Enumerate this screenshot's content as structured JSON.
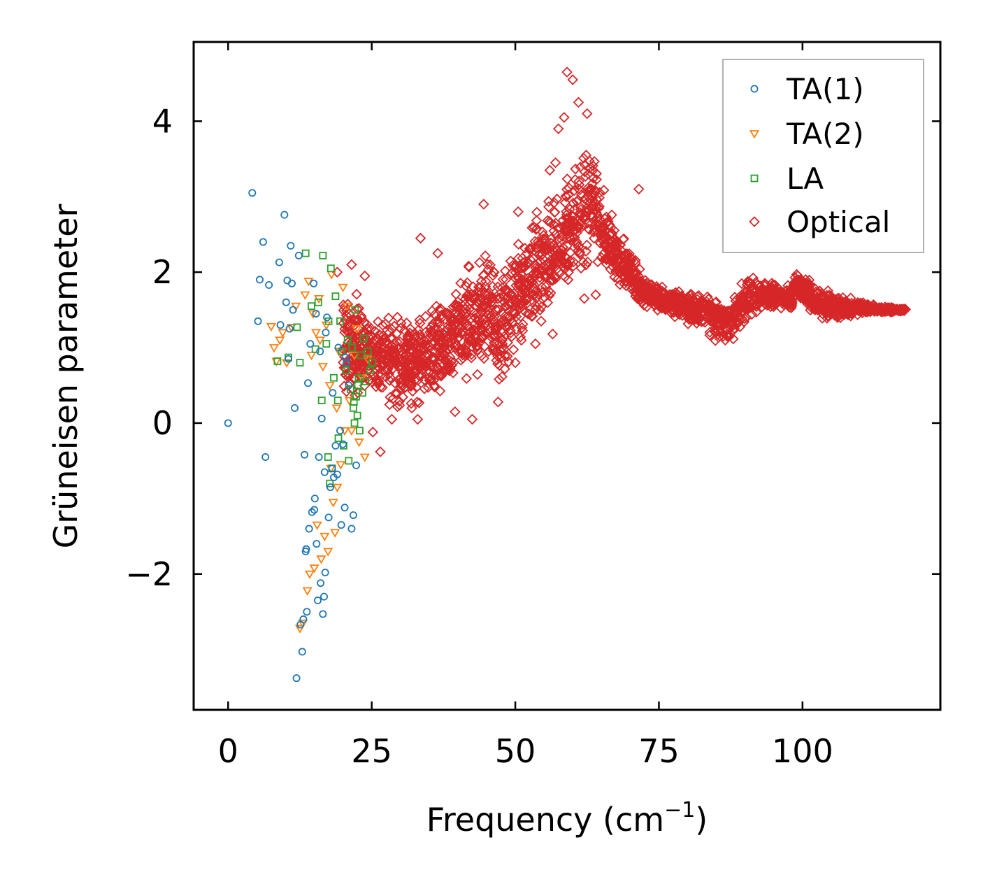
{
  "chart_data": {
    "type": "scatter",
    "xlabel": "Frequency (cm",
    "xlabel_sup": "−1",
    "xlabel_close": ")",
    "ylabel": "Grüneisen parameter",
    "xlim": [
      -6,
      124
    ],
    "ylim": [
      -3.8,
      5.05
    ],
    "xticks": [
      0,
      25,
      50,
      75,
      100
    ],
    "xtick_labels": [
      "0",
      "25",
      "50",
      "75",
      "100"
    ],
    "yticks": [
      -2,
      0,
      2,
      4
    ],
    "ytick_labels": [
      "−2",
      "0",
      "2",
      "4"
    ],
    "legend_position": "top-right",
    "series": [
      {
        "name": "TA(1)",
        "marker": "circle",
        "color": "#1f77b4",
        "points": [
          [
            0,
            0
          ],
          [
            4.2,
            3.05
          ],
          [
            5.2,
            1.35
          ],
          [
            5.5,
            1.9
          ],
          [
            6.1,
            2.4
          ],
          [
            6.5,
            -0.45
          ],
          [
            7.1,
            1.83
          ],
          [
            8.9,
            2.13
          ],
          [
            9.1,
            1.3
          ],
          [
            9.8,
            2.76
          ],
          [
            10.1,
            1.6
          ],
          [
            10.3,
            1.89
          ],
          [
            10.5,
            0.85
          ],
          [
            10.7,
            1.25
          ],
          [
            10.9,
            2.35
          ],
          [
            11.1,
            1.85
          ],
          [
            11.3,
            1.5
          ],
          [
            11.6,
            0.2
          ],
          [
            11.9,
            -3.38
          ],
          [
            12.3,
            2.22
          ],
          [
            12.6,
            -2.67
          ],
          [
            12.9,
            -3.03
          ],
          [
            13.1,
            -2.6
          ],
          [
            13.3,
            -0.42
          ],
          [
            13.5,
            -1.7
          ],
          [
            13.7,
            -2.5
          ],
          [
            13.9,
            0.53
          ],
          [
            14.1,
            -1.4
          ],
          [
            14.3,
            1.05
          ],
          [
            14.6,
            -1.18
          ],
          [
            14.9,
            1.85
          ],
          [
            15.1,
            -1.0
          ],
          [
            15.4,
            -1.6
          ],
          [
            15.6,
            -2.35
          ],
          [
            15.8,
            -0.45
          ],
          [
            16.1,
            -2.12
          ],
          [
            16.3,
            0.06
          ],
          [
            16.5,
            -2.53
          ],
          [
            16.7,
            -2.3
          ],
          [
            16.9,
            -1.98
          ],
          [
            17.2,
            1.4
          ],
          [
            17.5,
            -1.25
          ],
          [
            17.8,
            -0.85
          ],
          [
            18.1,
            -0.6
          ],
          [
            18.4,
            -0.72
          ],
          [
            18.7,
            -0.3
          ],
          [
            19.0,
            -0.68
          ],
          [
            19.2,
            1.0
          ],
          [
            19.5,
            -0.1
          ],
          [
            19.7,
            -1.35
          ],
          [
            20.0,
            -0.28
          ],
          [
            20.3,
            -1.12
          ],
          [
            20.6,
            0.8
          ],
          [
            21.0,
            0.5
          ],
          [
            21.5,
            -1.4
          ],
          [
            21.8,
            -1.22
          ],
          [
            22.3,
            -0.56
          ],
          [
            15.3,
            1.45
          ],
          [
            16.0,
            0.95
          ],
          [
            17.0,
            1.2
          ],
          [
            18.2,
            0.4
          ],
          [
            20.4,
            0.87
          ],
          [
            13.6,
            -1.67
          ],
          [
            15.0,
            -1.15
          ],
          [
            16.8,
            -0.65
          ]
        ]
      },
      {
        "name": "TA(2)",
        "marker": "triangle",
        "color": "#ff7f0e",
        "points": [
          [
            7.5,
            1.28
          ],
          [
            8.0,
            1.0
          ],
          [
            8.4,
            0.82
          ],
          [
            9.0,
            1.1
          ],
          [
            9.5,
            1.2
          ],
          [
            10.2,
            0.8
          ],
          [
            11.0,
            1.27
          ],
          [
            11.8,
            1.55
          ],
          [
            12.5,
            -2.72
          ],
          [
            13.0,
            -2.65
          ],
          [
            13.4,
            1.7
          ],
          [
            13.8,
            -2.22
          ],
          [
            14.0,
            1.88
          ],
          [
            14.2,
            -2.0
          ],
          [
            14.5,
            0.9
          ],
          [
            14.8,
            1.45
          ],
          [
            15.0,
            -1.92
          ],
          [
            15.3,
            1.2
          ],
          [
            15.5,
            -1.35
          ],
          [
            15.8,
            1.65
          ],
          [
            16.2,
            -1.8
          ],
          [
            16.5,
            0.75
          ],
          [
            16.8,
            -1.5
          ],
          [
            17.1,
            1.3
          ],
          [
            17.4,
            -1.7
          ],
          [
            17.7,
            0.5
          ],
          [
            18.0,
            1.97
          ],
          [
            18.3,
            -1.05
          ],
          [
            18.6,
            -1.45
          ],
          [
            18.9,
            0.2
          ],
          [
            19.3,
            0.95
          ],
          [
            19.6,
            -0.55
          ],
          [
            20.0,
            1.8
          ],
          [
            20.3,
            -0.1
          ],
          [
            20.7,
            1.55
          ],
          [
            21.1,
            0.3
          ],
          [
            21.5,
            -0.1
          ],
          [
            22.0,
            0.9
          ],
          [
            22.4,
            1.25
          ],
          [
            22.8,
            -0.25
          ],
          [
            23.3,
            0.6
          ],
          [
            23.8,
            -0.45
          ],
          [
            24.3,
            0.85
          ],
          [
            16.0,
            1.1
          ],
          [
            17.9,
            -0.6
          ],
          [
            19.0,
            -0.85
          ]
        ]
      },
      {
        "name": "LA",
        "marker": "square",
        "color": "#2ca02c",
        "points": [
          [
            8.6,
            0.82
          ],
          [
            10.5,
            0.87
          ],
          [
            12.0,
            1.27
          ],
          [
            12.5,
            0.8
          ],
          [
            13.5,
            2.25
          ],
          [
            14.5,
            1.55
          ],
          [
            15.2,
            0.98
          ],
          [
            15.7,
            1.6
          ],
          [
            16.3,
            0.3
          ],
          [
            16.5,
            2.22
          ],
          [
            17.1,
            1.05
          ],
          [
            17.4,
            -0.45
          ],
          [
            17.7,
            -0.8
          ],
          [
            17.9,
            2.05
          ],
          [
            18.1,
            -0.6
          ],
          [
            18.4,
            0.6
          ],
          [
            18.7,
            1.68
          ],
          [
            19.1,
            0.3
          ],
          [
            19.5,
            1.35
          ],
          [
            19.8,
            0.95
          ],
          [
            20.1,
            -0.3
          ],
          [
            20.5,
            0.7
          ],
          [
            20.8,
            1.1
          ],
          [
            21.0,
            -0.5
          ],
          [
            21.3,
            0.45
          ],
          [
            21.6,
            1.0
          ],
          [
            21.8,
            0.2
          ],
          [
            22.0,
            0.0
          ],
          [
            22.1,
            1.5
          ],
          [
            22.3,
            0.35
          ],
          [
            22.5,
            0.1
          ],
          [
            22.7,
            0.6
          ],
          [
            22.9,
            -0.1
          ],
          [
            23.1,
            0.9
          ],
          [
            23.4,
            0.4
          ],
          [
            23.6,
            1.12
          ],
          [
            23.9,
            0.55
          ],
          [
            24.3,
            0.95
          ],
          [
            24.7,
            0.7
          ],
          [
            25.1,
            0.8
          ],
          [
            17.5,
            1.35
          ],
          [
            19.2,
            -0.2
          ],
          [
            21.9,
            0.28
          ],
          [
            22.6,
            0.5
          ]
        ]
      },
      {
        "name": "Optical",
        "marker": "diamond",
        "color": "#d62728",
        "points": []
      }
    ],
    "optical_envelope": {
      "x": [
        17,
        20,
        24,
        27,
        30,
        34,
        38,
        42,
        45,
        47,
        50,
        53,
        56,
        58,
        60,
        62,
        63,
        64,
        65,
        66,
        68,
        70,
        72,
        75,
        78,
        80,
        83,
        85,
        87,
        88,
        90,
        93,
        96,
        98,
        99,
        101,
        104,
        107,
        110,
        114,
        118
      ],
      "lo": [
        0.2,
        0.1,
        0.15,
        0.1,
        0.05,
        0.1,
        0.3,
        0.45,
        0.55,
        0.25,
        0.8,
        1.0,
        1.3,
        1.55,
        1.6,
        1.75,
        2.0,
        2.1,
        1.9,
        1.85,
        1.7,
        1.6,
        1.55,
        1.45,
        1.35,
        1.3,
        1.15,
        1.05,
        0.95,
        0.95,
        1.3,
        1.45,
        1.5,
        1.45,
        1.65,
        1.45,
        1.35,
        1.35,
        1.42,
        1.45,
        1.48
      ],
      "hi": [
        2.0,
        2.05,
        1.7,
        1.55,
        1.55,
        1.6,
        1.8,
        2.3,
        2.4,
        2.1,
        2.55,
        2.8,
        3.1,
        3.35,
        3.55,
        3.85,
        4.0,
        3.6,
        3.25,
        3.0,
        2.6,
        2.35,
        2.0,
        1.85,
        1.8,
        1.75,
        1.75,
        1.75,
        1.7,
        1.75,
        2.0,
        1.95,
        1.9,
        1.85,
        2.1,
        1.95,
        1.8,
        1.7,
        1.65,
        1.55,
        1.52
      ],
      "outliers": [
        [
          59.0,
          4.65
        ],
        [
          60.0,
          4.55
        ],
        [
          61.0,
          4.25
        ],
        [
          58.5,
          4.05
        ],
        [
          62.5,
          4.1
        ],
        [
          57.5,
          3.9
        ],
        [
          57.0,
          3.45
        ],
        [
          56.0,
          3.35
        ],
        [
          71.5,
          3.1
        ],
        [
          44.5,
          2.9
        ],
        [
          50.5,
          2.8
        ],
        [
          36.5,
          2.25
        ],
        [
          33.5,
          2.45
        ],
        [
          26.5,
          -0.38
        ],
        [
          25.2,
          -0.12
        ],
        [
          42.5,
          0.05
        ],
        [
          39.5,
          0.15
        ],
        [
          47.0,
          0.28
        ],
        [
          56.5,
          1.18
        ],
        [
          54.5,
          1.35
        ],
        [
          53.5,
          1.05
        ],
        [
          50.0,
          0.8
        ],
        [
          62.0,
          1.65
        ],
        [
          64.0,
          1.7
        ],
        [
          28.5,
          0.05
        ],
        [
          33.0,
          0.05
        ],
        [
          19.0,
          2.0
        ],
        [
          21.5,
          2.1
        ],
        [
          23.8,
          1.95
        ]
      ]
    }
  }
}
